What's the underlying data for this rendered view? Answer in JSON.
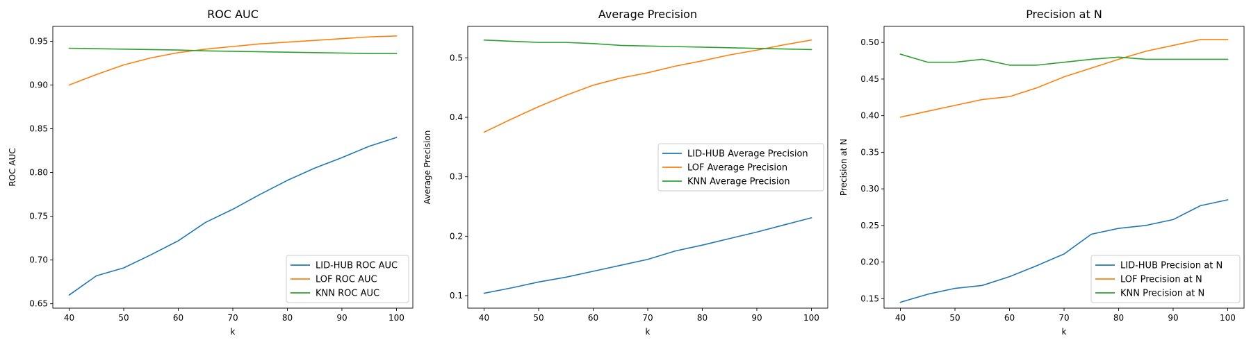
{
  "chart_data": [
    {
      "type": "line",
      "title": "ROC AUC",
      "xlabel": "k",
      "ylabel": "ROC AUC",
      "xlim": [
        37,
        103
      ],
      "ylim": [
        0.645,
        0.967
      ],
      "x_ticks": [
        "40",
        "50",
        "60",
        "70",
        "80",
        "90",
        "100"
      ],
      "y_ticks": [
        "0.65",
        "0.70",
        "0.75",
        "0.80",
        "0.85",
        "0.90",
        "0.95"
      ],
      "x": [
        40,
        45,
        50,
        55,
        60,
        65,
        70,
        75,
        80,
        85,
        90,
        95,
        100
      ],
      "legend_position": "lower-right",
      "series": [
        {
          "name": "LID-HUB ROC AUC",
          "color": "#1f77b4",
          "values": [
            0.66,
            0.682,
            0.691,
            0.706,
            0.722,
            0.743,
            0.758,
            0.775,
            0.791,
            0.805,
            0.817,
            0.83,
            0.84
          ]
        },
        {
          "name": "LOF ROC AUC",
          "color": "#ff7f0e",
          "values": [
            0.9,
            0.912,
            0.923,
            0.931,
            0.937,
            0.941,
            0.944,
            0.947,
            0.949,
            0.951,
            0.953,
            0.955,
            0.956
          ]
        },
        {
          "name": "KNN ROC AUC",
          "color": "#2ca02c",
          "values": [
            0.942,
            0.9415,
            0.941,
            0.9405,
            0.94,
            0.939,
            0.9385,
            0.938,
            0.9375,
            0.937,
            0.9365,
            0.936,
            0.936
          ]
        }
      ]
    },
    {
      "type": "line",
      "title": "Average Precision",
      "xlabel": "k",
      "ylabel": "Average Precision",
      "xlim": [
        37,
        103
      ],
      "ylim": [
        0.079,
        0.553
      ],
      "x_ticks": [
        "40",
        "50",
        "60",
        "70",
        "80",
        "90",
        "100"
      ],
      "y_ticks": [
        "0.1",
        "0.2",
        "0.3",
        "0.4",
        "0.5"
      ],
      "x": [
        40,
        45,
        50,
        55,
        60,
        65,
        70,
        75,
        80,
        85,
        90,
        95,
        100
      ],
      "legend_position": "center-right",
      "series": [
        {
          "name": "LID-HUB Average Precision",
          "color": "#1f77b4",
          "values": [
            0.104,
            0.113,
            0.123,
            0.131,
            0.141,
            0.151,
            0.161,
            0.175,
            0.185,
            0.196,
            0.207,
            0.219,
            0.231
          ]
        },
        {
          "name": "LOF Average Precision",
          "color": "#ff7f0e",
          "values": [
            0.375,
            0.397,
            0.418,
            0.437,
            0.454,
            0.466,
            0.475,
            0.486,
            0.495,
            0.505,
            0.513,
            0.522,
            0.53
          ]
        },
        {
          "name": "KNN Average Precision",
          "color": "#2ca02c",
          "values": [
            0.53,
            0.528,
            0.526,
            0.526,
            0.524,
            0.521,
            0.52,
            0.519,
            0.518,
            0.517,
            0.516,
            0.515,
            0.514
          ]
        }
      ]
    },
    {
      "type": "line",
      "title": "Precision at N",
      "xlabel": "k",
      "ylabel": "Precision at N",
      "xlim": [
        37,
        103
      ],
      "ylim": [
        0.137,
        0.522
      ],
      "x_ticks": [
        "40",
        "50",
        "60",
        "70",
        "80",
        "90",
        "100"
      ],
      "y_ticks": [
        "0.15",
        "0.20",
        "0.25",
        "0.30",
        "0.35",
        "0.40",
        "0.45",
        "0.50"
      ],
      "x": [
        40,
        45,
        50,
        55,
        60,
        65,
        70,
        75,
        80,
        85,
        90,
        95,
        100
      ],
      "legend_position": "lower-right",
      "series": [
        {
          "name": "LID-HUB Precision at N",
          "color": "#1f77b4",
          "values": [
            0.145,
            0.156,
            0.164,
            0.168,
            0.18,
            0.195,
            0.211,
            0.238,
            0.246,
            0.25,
            0.258,
            0.277,
            0.285
          ]
        },
        {
          "name": "LOF Precision at N",
          "color": "#ff7f0e",
          "values": [
            0.398,
            0.406,
            0.414,
            0.422,
            0.426,
            0.438,
            0.453,
            0.465,
            0.477,
            0.488,
            0.496,
            0.504,
            0.504
          ]
        },
        {
          "name": "KNN Precision at N",
          "color": "#2ca02c",
          "values": [
            0.484,
            0.473,
            0.473,
            0.477,
            0.469,
            0.469,
            0.473,
            0.477,
            0.48,
            0.477,
            0.477,
            0.477,
            0.477
          ]
        }
      ]
    }
  ]
}
